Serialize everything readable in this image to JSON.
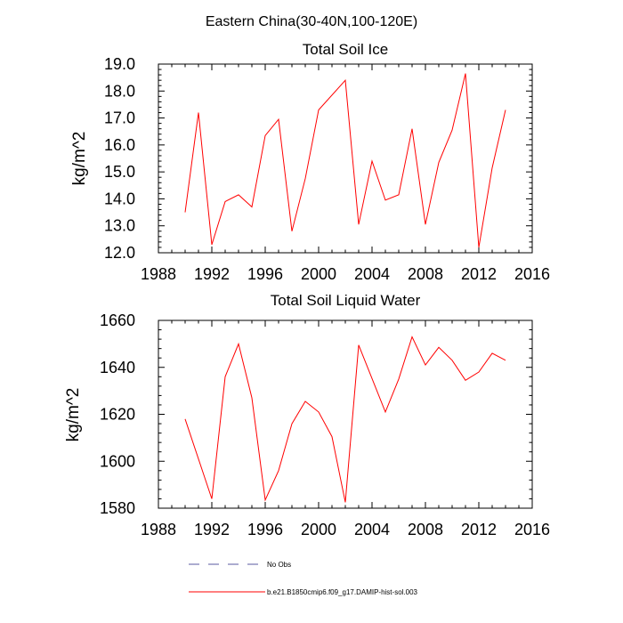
{
  "figure": {
    "title": "Eastern China(30-40N,100-120E)"
  },
  "chart_data": [
    {
      "type": "line",
      "title": "Total Soil Ice",
      "xlabel": "",
      "ylabel": "kg/m^2",
      "xlim": [
        1988,
        2016
      ],
      "ylim": [
        12.0,
        19.0
      ],
      "x_ticks": [
        "1988",
        "1992",
        "1996",
        "2000",
        "2004",
        "2008",
        "2012",
        "2016"
      ],
      "y_ticks": [
        "12.0",
        "13.0",
        "14.0",
        "15.0",
        "16.0",
        "17.0",
        "18.0",
        "19.0"
      ],
      "grid": false,
      "series": [
        {
          "name": "b.e21.B1850cmip6.f09_g17.DAMIP-hist-sol.003",
          "color": "#ff0000",
          "x": [
            1990,
            1991,
            1992,
            1993,
            1994,
            1995,
            1996,
            1997,
            1998,
            1999,
            2000,
            2002,
            2003,
            2004,
            2005,
            2006,
            2007,
            2008,
            2009,
            2010,
            2011,
            2012,
            2013,
            2014
          ],
          "y": [
            13.5,
            17.2,
            12.3,
            13.9,
            14.15,
            13.7,
            16.35,
            16.95,
            12.8,
            14.75,
            17.3,
            18.4,
            13.05,
            15.4,
            13.95,
            14.15,
            16.6,
            13.05,
            15.35,
            16.55,
            18.65,
            12.2,
            15.15,
            17.3
          ]
        }
      ]
    },
    {
      "type": "line",
      "title": "Total Soil Liquid Water",
      "xlabel": "",
      "ylabel": "kg/m^2",
      "xlim": [
        1988,
        2016
      ],
      "ylim": [
        1580,
        1660
      ],
      "x_ticks": [
        "1988",
        "1992",
        "1996",
        "2000",
        "2004",
        "2008",
        "2012",
        "2016"
      ],
      "y_ticks": [
        "1580",
        "1600",
        "1620",
        "1640",
        "1660"
      ],
      "grid": false,
      "series": [
        {
          "name": "b.e21.B1850cmip6.f09_g17.DAMIP-hist-sol.003",
          "color": "#ff0000",
          "x": [
            1990,
            1992,
            1993,
            1994,
            1995,
            1996,
            1997,
            1998,
            1999,
            2000,
            2001,
            2002,
            2003,
            2005,
            2006,
            2007,
            2008,
            2009,
            2010,
            2011,
            2012,
            2013,
            2014
          ],
          "y": [
            1618,
            1584,
            1636,
            1650,
            1627,
            1583.5,
            1596,
            1616,
            1625.5,
            1621,
            1610.5,
            1582.5,
            1649.5,
            1621,
            1635,
            1653,
            1641,
            1648.5,
            1643,
            1634.5,
            1638,
            1646,
            1643
          ]
        }
      ]
    }
  ],
  "legend": {
    "placement": "bottom",
    "items": [
      {
        "label": "No Obs",
        "color": "#5a5aa0",
        "style": "dashed"
      },
      {
        "label": "b.e21.B1850cmip6.f09_g17.DAMIP-hist-sol.003",
        "color": "#ff0000",
        "style": "solid"
      }
    ]
  }
}
